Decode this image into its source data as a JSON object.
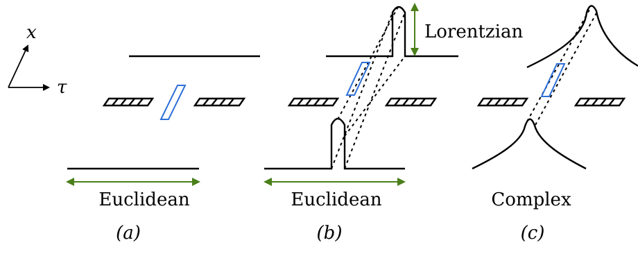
{
  "axes": {
    "x_label": "x",
    "tau_label": "τ"
  },
  "panels": [
    {
      "regime": "Euclidean",
      "tag": "(a)"
    },
    {
      "regime": "Euclidean",
      "tag": "(b)",
      "extra_label": "Lorentzian"
    },
    {
      "regime": "Complex",
      "tag": "(c)"
    }
  ],
  "colors": {
    "region": "#2e6fd8",
    "arrow": "#4a7f1a",
    "ink": "#000000"
  }
}
